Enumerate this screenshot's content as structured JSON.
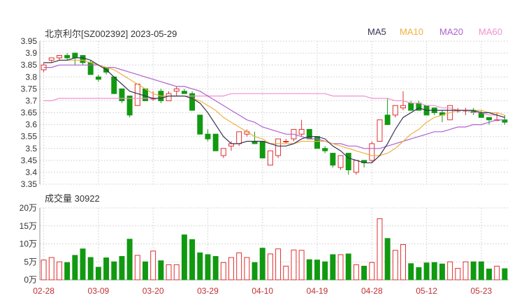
{
  "header": {
    "title": "北京利尔[SZ002392] 2023-05-29",
    "volume_label": "成交量 30922"
  },
  "colors": {
    "up": "#e03030",
    "down": "#119911",
    "grid": "#d8d8d8",
    "ma5": "#333355",
    "ma10": "#f0b040",
    "ma20": "#b060d0",
    "ma60": "#f090d0",
    "axis_text": "#333333",
    "date_text": "#c03030"
  },
  "legend": [
    {
      "key": "ma5",
      "label": "MA5"
    },
    {
      "key": "ma10",
      "label": "MA10"
    },
    {
      "key": "ma20",
      "label": "MA20"
    },
    {
      "key": "ma60",
      "label": "MA60"
    }
  ],
  "chart_data": [
    {
      "type": "candlestick",
      "title": "北京利尔[SZ002392] 2023-05-29",
      "ylim": [
        3.35,
        3.95
      ],
      "yticks": [
        "3.95",
        "3.9",
        "3.85",
        "3.8",
        "3.75",
        "3.7",
        "3.65",
        "3.6",
        "3.55",
        "3.5",
        "3.45",
        "3.4",
        "3.35"
      ],
      "xticks": [
        {
          "label": "02-28",
          "index": 0
        },
        {
          "label": "03-09",
          "index": 7
        },
        {
          "label": "03-20",
          "index": 14
        },
        {
          "label": "03-29",
          "index": 21
        },
        {
          "label": "04-10",
          "index": 28
        },
        {
          "label": "04-19",
          "index": 35
        },
        {
          "label": "04-28",
          "index": 42
        },
        {
          "label": "05-12",
          "index": 49
        },
        {
          "label": "05-23",
          "index": 56
        }
      ],
      "ohlc": [
        [
          3.83,
          3.86,
          3.82,
          3.85
        ],
        [
          3.87,
          3.88,
          3.86,
          3.88
        ],
        [
          3.88,
          3.89,
          3.87,
          3.89
        ],
        [
          3.89,
          3.9,
          3.87,
          3.88
        ],
        [
          3.9,
          3.9,
          3.85,
          3.88
        ],
        [
          3.89,
          3.89,
          3.85,
          3.86
        ],
        [
          3.86,
          3.87,
          3.81,
          3.81
        ],
        [
          3.8,
          3.81,
          3.78,
          3.79
        ],
        [
          3.84,
          3.84,
          3.81,
          3.82
        ],
        [
          3.8,
          3.8,
          3.73,
          3.73
        ],
        [
          3.75,
          3.75,
          3.69,
          3.7
        ],
        [
          3.72,
          3.72,
          3.63,
          3.64
        ],
        [
          3.68,
          3.77,
          3.68,
          3.77
        ],
        [
          3.75,
          3.75,
          3.7,
          3.7
        ],
        [
          3.71,
          3.74,
          3.7,
          3.71
        ],
        [
          3.74,
          3.75,
          3.69,
          3.7
        ],
        [
          3.7,
          3.74,
          3.7,
          3.73
        ],
        [
          3.74,
          3.76,
          3.72,
          3.75
        ],
        [
          3.74,
          3.75,
          3.73,
          3.73
        ],
        [
          3.73,
          3.74,
          3.66,
          3.66
        ],
        [
          3.64,
          3.64,
          3.56,
          3.56
        ],
        [
          3.56,
          3.58,
          3.53,
          3.54
        ],
        [
          3.56,
          3.56,
          3.49,
          3.49
        ],
        [
          3.47,
          3.5,
          3.46,
          3.5
        ],
        [
          3.51,
          3.53,
          3.49,
          3.52
        ],
        [
          3.52,
          3.57,
          3.51,
          3.57
        ],
        [
          3.56,
          3.58,
          3.55,
          3.57
        ],
        [
          3.53,
          3.57,
          3.52,
          3.52
        ],
        [
          3.53,
          3.53,
          3.46,
          3.46
        ],
        [
          3.43,
          3.49,
          3.43,
          3.49
        ],
        [
          3.47,
          3.54,
          3.46,
          3.54
        ],
        [
          3.53,
          3.54,
          3.52,
          3.53
        ],
        [
          3.54,
          3.58,
          3.53,
          3.58
        ],
        [
          3.56,
          3.62,
          3.55,
          3.58
        ],
        [
          3.58,
          3.58,
          3.54,
          3.54
        ],
        [
          3.55,
          3.55,
          3.5,
          3.5
        ],
        [
          3.5,
          3.51,
          3.48,
          3.49
        ],
        [
          3.48,
          3.48,
          3.42,
          3.43
        ],
        [
          3.42,
          3.47,
          3.41,
          3.47
        ],
        [
          3.48,
          3.48,
          3.39,
          3.41
        ],
        [
          3.4,
          3.45,
          3.39,
          3.45
        ],
        [
          3.45,
          3.45,
          3.42,
          3.44
        ],
        [
          3.45,
          3.53,
          3.44,
          3.52
        ],
        [
          3.53,
          3.62,
          3.53,
          3.62
        ],
        [
          3.64,
          3.71,
          3.6,
          3.6
        ],
        [
          3.64,
          3.68,
          3.63,
          3.68
        ],
        [
          3.67,
          3.74,
          3.66,
          3.68
        ],
        [
          3.69,
          3.7,
          3.66,
          3.66
        ],
        [
          3.69,
          3.7,
          3.66,
          3.66
        ],
        [
          3.68,
          3.68,
          3.64,
          3.64
        ],
        [
          3.67,
          3.67,
          3.64,
          3.65
        ],
        [
          3.65,
          3.66,
          3.61,
          3.64
        ],
        [
          3.62,
          3.68,
          3.62,
          3.68
        ],
        [
          3.66,
          3.67,
          3.65,
          3.66
        ],
        [
          3.66,
          3.67,
          3.64,
          3.66
        ],
        [
          3.66,
          3.67,
          3.64,
          3.65
        ],
        [
          3.65,
          3.66,
          3.63,
          3.63
        ],
        [
          3.63,
          3.63,
          3.6,
          3.62
        ],
        [
          3.62,
          3.65,
          3.62,
          3.62
        ],
        [
          3.62,
          3.64,
          3.6,
          3.61
        ]
      ],
      "ma5": [
        3.86,
        3.86,
        3.87,
        3.87,
        3.88,
        3.88,
        3.87,
        3.85,
        3.83,
        3.8,
        3.77,
        3.74,
        3.73,
        3.72,
        3.71,
        3.71,
        3.72,
        3.72,
        3.72,
        3.71,
        3.69,
        3.65,
        3.6,
        3.55,
        3.52,
        3.52,
        3.53,
        3.53,
        3.53,
        3.52,
        3.51,
        3.51,
        3.52,
        3.54,
        3.55,
        3.55,
        3.54,
        3.51,
        3.49,
        3.46,
        3.45,
        3.44,
        3.44,
        3.47,
        3.52,
        3.58,
        3.63,
        3.65,
        3.67,
        3.66,
        3.66,
        3.66,
        3.66,
        3.66,
        3.66,
        3.66,
        3.65,
        3.65,
        3.64,
        3.63
      ],
      "ma10": [
        3.86,
        3.86,
        3.87,
        3.87,
        3.87,
        3.87,
        3.86,
        3.85,
        3.84,
        3.83,
        3.81,
        3.79,
        3.77,
        3.75,
        3.73,
        3.72,
        3.72,
        3.72,
        3.72,
        3.71,
        3.7,
        3.68,
        3.66,
        3.63,
        3.61,
        3.59,
        3.57,
        3.55,
        3.54,
        3.52,
        3.52,
        3.52,
        3.52,
        3.53,
        3.53,
        3.53,
        3.53,
        3.52,
        3.51,
        3.5,
        3.49,
        3.48,
        3.47,
        3.47,
        3.48,
        3.5,
        3.53,
        3.56,
        3.58,
        3.61,
        3.63,
        3.64,
        3.65,
        3.66,
        3.66,
        3.66,
        3.66,
        3.65,
        3.65,
        3.64
      ],
      "ma20": [
        3.84,
        3.84,
        3.85,
        3.85,
        3.85,
        3.85,
        3.85,
        3.85,
        3.84,
        3.84,
        3.83,
        3.82,
        3.81,
        3.8,
        3.79,
        3.78,
        3.77,
        3.76,
        3.76,
        3.75,
        3.74,
        3.72,
        3.7,
        3.68,
        3.66,
        3.64,
        3.62,
        3.61,
        3.59,
        3.58,
        3.57,
        3.56,
        3.56,
        3.55,
        3.54,
        3.54,
        3.53,
        3.52,
        3.52,
        3.51,
        3.51,
        3.5,
        3.5,
        3.5,
        3.51,
        3.52,
        3.53,
        3.54,
        3.55,
        3.56,
        3.57,
        3.57,
        3.58,
        3.59,
        3.59,
        3.6,
        3.6,
        3.61,
        3.62,
        3.62
      ],
      "ma60": [
        3.7,
        3.7,
        3.71,
        3.71,
        3.71,
        3.71,
        3.71,
        3.71,
        3.71,
        3.71,
        3.71,
        3.71,
        3.71,
        3.71,
        3.71,
        3.71,
        3.72,
        3.72,
        3.72,
        3.72,
        3.72,
        3.72,
        3.72,
        3.72,
        3.73,
        3.73,
        3.73,
        3.73,
        3.73,
        3.73,
        3.73,
        3.73,
        3.73,
        3.73,
        3.73,
        3.73,
        3.73,
        3.72,
        3.72,
        3.72,
        3.72,
        3.72,
        3.71,
        3.71,
        3.71,
        3.7,
        3.7,
        3.69,
        3.69,
        3.68,
        3.68,
        3.67,
        3.67,
        3.66,
        3.66,
        3.65,
        3.65,
        3.64,
        3.64,
        3.63
      ]
    },
    {
      "type": "bar",
      "title": "成交量 30922",
      "ylim": [
        0,
        200000
      ],
      "yticks": [
        "20万",
        "15万",
        "10万",
        "5万",
        "0万"
      ],
      "values": [
        55000,
        62000,
        50000,
        48000,
        68000,
        86000,
        62000,
        35000,
        61000,
        50000,
        65000,
        113000,
        68000,
        50000,
        80000,
        53000,
        42000,
        42000,
        125000,
        112000,
        75000,
        70000,
        65000,
        48000,
        62000,
        75000,
        62000,
        48000,
        88000,
        72000,
        86000,
        38000,
        83000,
        82000,
        56000,
        55000,
        50000,
        70000,
        70000,
        72000,
        42000,
        38000,
        48000,
        170000,
        115000,
        82000,
        98000,
        45000,
        34000,
        47000,
        48000,
        44000,
        50000,
        32000,
        50000,
        50000,
        50000,
        30000,
        38000,
        30922
      ]
    }
  ]
}
